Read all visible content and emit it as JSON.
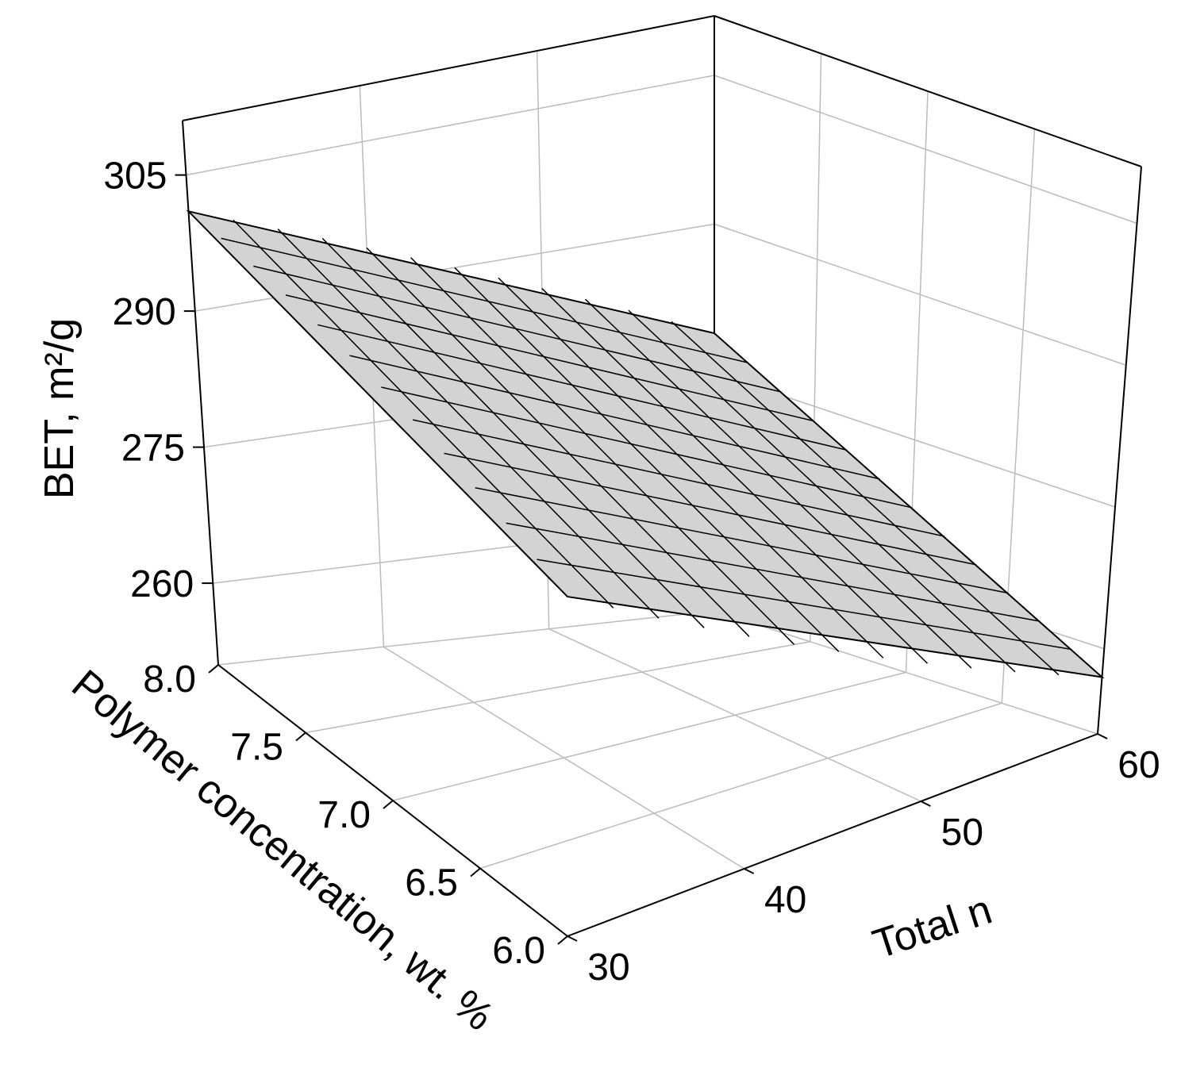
{
  "chart_data": {
    "type": "surface",
    "x_label": "Total n",
    "y_label": "Polymer concentration, wt. %",
    "z_label": "BET, m²/g",
    "x": [
      30,
      60
    ],
    "y": [
      6,
      8
    ],
    "z": [
      [
        279,
        257
      ],
      [
        301,
        279
      ]
    ],
    "color": "#d3d3d3",
    "xlim": [
      30,
      60
    ],
    "ylim": [
      6,
      8
    ],
    "zlim": [
      251,
      311
    ],
    "xticks": [
      30,
      40,
      50,
      60
    ],
    "yticks": [
      {
        "value": 6,
        "label": "6.0"
      },
      {
        "value": 6.5,
        "label": "6.5"
      },
      {
        "value": 7,
        "label": "7.0"
      },
      {
        "value": 7.5,
        "label": "7.5"
      },
      {
        "value": 8,
        "label": "8.0"
      }
    ],
    "zticks": [
      260,
      275,
      290,
      305
    ],
    "grid": true
  }
}
